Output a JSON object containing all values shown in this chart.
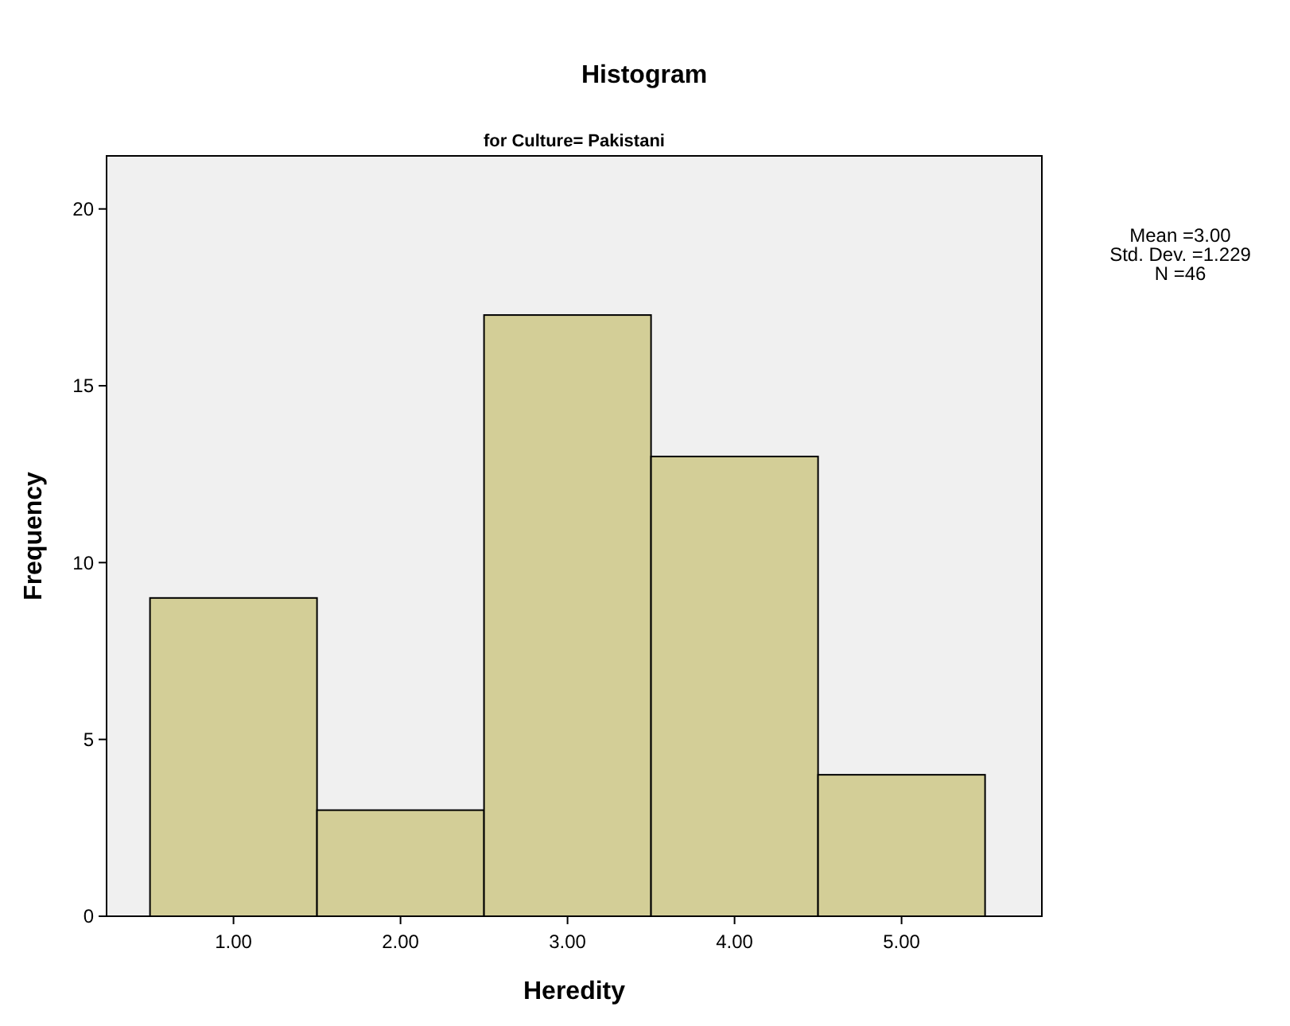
{
  "chart_data": {
    "type": "histogram",
    "title": "Histogram",
    "subtitle": "for Culture= Pakistani",
    "xlabel": "Heredity",
    "ylabel": "Frequency",
    "annotations": [
      "Mean =3.00",
      "Std. Dev. =1.229",
      "N =46"
    ],
    "bins": [
      0.5,
      1.5,
      2.5,
      3.5,
      4.5,
      5.5
    ],
    "values": [
      9,
      3,
      17,
      13,
      4
    ],
    "color": "#d3ce97",
    "xlim": [
      0.24,
      5.84
    ],
    "ylim": [
      0,
      21.5
    ],
    "xticks": [
      {
        "value": 1,
        "label": "1.00"
      },
      {
        "value": 2,
        "label": "2.00"
      },
      {
        "value": 3,
        "label": "3.00"
      },
      {
        "value": 4,
        "label": "4.00"
      },
      {
        "value": 5,
        "label": "5.00"
      }
    ],
    "yticks": [
      0,
      5,
      10,
      15,
      20
    ]
  }
}
